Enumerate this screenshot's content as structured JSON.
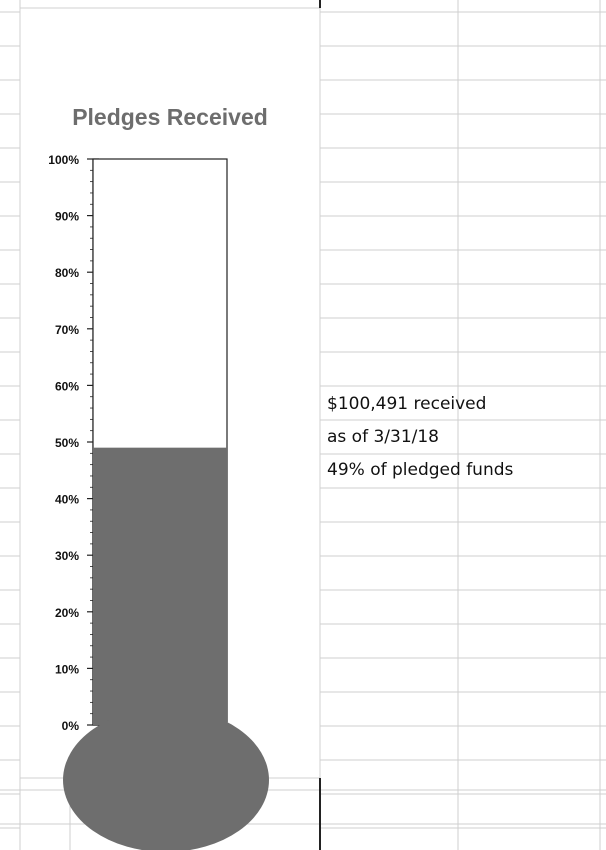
{
  "chart_data": {
    "type": "bar",
    "title": "Pledges Received",
    "categories": [
      ""
    ],
    "values": [
      49
    ],
    "ylim": [
      0,
      100
    ],
    "y_ticks": [
      "0%",
      "10%",
      "20%",
      "30%",
      "40%",
      "50%",
      "60%",
      "70%",
      "80%",
      "90%",
      "100%"
    ],
    "grid": false,
    "legend": "none",
    "fill_color": "#6e6e6e"
  },
  "note": {
    "line1": "$100,491 received",
    "line2": "as of 3/31/18",
    "line3": "49% of pledged funds"
  }
}
